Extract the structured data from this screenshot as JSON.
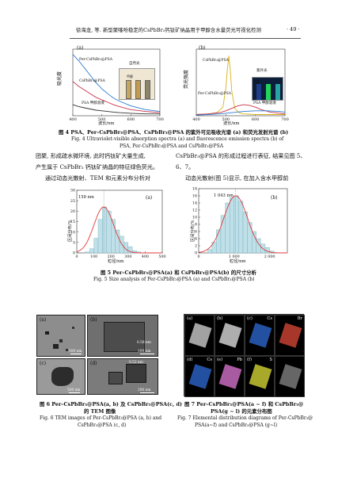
{
  "header": {
    "running_head": "徐海龙, 等. 新型聚噻吩稳定的CsPbBr₃钙钛矿纳晶用于甲醇含水量荧光可视化检测",
    "page_number": "· 49 ·"
  },
  "figure4": {
    "panel_a_label": "(a)",
    "panel_b_label": "(b)",
    "panel_a_ylabel": "吸光度",
    "panel_b_ylabel": "荧光强度",
    "xlabel": "波长/nm",
    "panel_a_series": [
      "Per-CsPbBr₃@PSA",
      "CsPbBr₃@PSA",
      "PSA 甲醇溶液"
    ],
    "panel_b_series": [
      "CsPbBr₃@PSA",
      "Per-CsPbBr₃@PSA",
      "PSA 甲醇溶液"
    ],
    "inset_a": [
      "自然光",
      "甲醇"
    ],
    "inset_b": [
      "紫外光",
      "甲醇"
    ],
    "caption_cn": "图 4  PSA、Per–CsPbBr₃@PSA、CsPbBr₃@PSA 的紫外可见吸收光谱 (a) 和荧光发射光谱 (b)",
    "caption_en_1": "Fig. 4  Ultraviolet-visible absorption spectra (a) and fluorescence emission spectra (b) of",
    "caption_en_2": "PSA, Per-CsPbBr₃@PSA and CsPbBr₃@PSA"
  },
  "body": {
    "left_line1": "团聚, 形成疏水微环境, 此时钙钛矿大量生成,",
    "left_line2": "产生属于 CsPbBr₃ 钙钛矿纳晶的特征绿色荧光。",
    "left_line3": "通过动态光散射、TEM 和元素分布分析对",
    "right_line1": "CsPbBr₃@PSA 的形成过程进行表征, 结果见图 5、",
    "right_line2": "6、7。",
    "right_line3": "动态光散射(图 5)显示, 在加入含水甲醇前"
  },
  "figure5": {
    "panel_a_label": "(a)",
    "panel_b_label": "(b)",
    "ylabel": "区间分布/%",
    "xlabel": "粒径/nm",
    "panel_a_annotation": "158 nm",
    "panel_b_annotation": "1 043 nm",
    "caption_cn": "图 5  Per–CsPbBr₃@PSA(a) 和 CsPbBr₃@PSA(b) 的尺寸分析",
    "caption_en": "Fig. 5  Size analysis of Per-CsPbBr₃@PSA (a) and CsPbBr₃@PSA (b)"
  },
  "chart_data": [
    {
      "type": "line",
      "title": "",
      "xlabel": "波长/nm",
      "ylabel": "吸光度",
      "xlim": [
        400,
        700
      ],
      "x_ticks": [
        400,
        500,
        600,
        700
      ],
      "series": [
        {
          "name": "Per-CsPbBr₃@PSA",
          "color": "#2b7bd0",
          "x": [
            400,
            410,
            420,
            430,
            440,
            460,
            480,
            500,
            520,
            540,
            560,
            600,
            650,
            700
          ],
          "y": [
            1.0,
            0.95,
            0.9,
            0.84,
            0.78,
            0.66,
            0.54,
            0.44,
            0.36,
            0.29,
            0.24,
            0.16,
            0.1,
            0.07
          ]
        },
        {
          "name": "CsPbBr₃@PSA",
          "color": "#c8344a",
          "x": [
            400,
            420,
            440,
            460,
            480,
            500,
            520,
            540,
            560,
            600,
            650,
            700
          ],
          "y": [
            0.56,
            0.48,
            0.42,
            0.36,
            0.3,
            0.26,
            0.22,
            0.18,
            0.15,
            0.1,
            0.07,
            0.05
          ]
        },
        {
          "name": "PSA 甲醇溶液",
          "color": "#333333",
          "x": [
            400,
            420,
            440,
            460,
            480,
            500,
            520,
            540,
            560,
            600,
            650,
            700
          ],
          "y": [
            0.18,
            0.15,
            0.13,
            0.11,
            0.09,
            0.08,
            0.07,
            0.06,
            0.05,
            0.04,
            0.03,
            0.03
          ]
        }
      ]
    },
    {
      "type": "line",
      "title": "",
      "xlabel": "波长/nm",
      "ylabel": "荧光强度",
      "xlim": [
        400,
        700
      ],
      "x_ticks": [
        400,
        500,
        600,
        700
      ],
      "series": [
        {
          "name": "CsPbBr₃@PSA",
          "color": "#d7b21a",
          "x": [
            400,
            440,
            470,
            490,
            500,
            505,
            510,
            515,
            520,
            530,
            545,
            560,
            600,
            650,
            700
          ],
          "y": [
            0.02,
            0.03,
            0.05,
            0.14,
            0.45,
            0.75,
            0.98,
            0.75,
            0.4,
            0.12,
            0.05,
            0.03,
            0.02,
            0.02,
            0.02
          ]
        },
        {
          "name": "Per-CsPbBr₃@PSA",
          "color": "#c8344a",
          "x": [
            400,
            440,
            480,
            500,
            520,
            540,
            560,
            580,
            600,
            620,
            650,
            700
          ],
          "y": [
            0.02,
            0.03,
            0.05,
            0.08,
            0.12,
            0.16,
            0.18,
            0.17,
            0.14,
            0.1,
            0.06,
            0.03
          ]
        },
        {
          "name": "PSA 甲醇溶液",
          "color": "#2b7bd0",
          "x": [
            400,
            440,
            480,
            520,
            560,
            600,
            640,
            680,
            700
          ],
          "y": [
            0.01,
            0.02,
            0.03,
            0.05,
            0.07,
            0.08,
            0.08,
            0.07,
            0.06
          ]
        }
      ]
    },
    {
      "type": "bar",
      "title": "",
      "xlabel": "粒径/nm",
      "ylabel": "区间分布/%",
      "xlim": [
        0,
        500
      ],
      "ylim": [
        0,
        30
      ],
      "x_ticks": [
        0,
        100,
        200,
        300,
        400,
        500
      ],
      "y_ticks": [
        0,
        5,
        10,
        15,
        20,
        25,
        30
      ],
      "bin_width": 25,
      "bin_centers": [
        62.5,
        87.5,
        112.5,
        137.5,
        162.5,
        187.5,
        212.5,
        237.5,
        262.5,
        287.5,
        312.5,
        337.5,
        362.5
      ],
      "values": [
        0.5,
        2,
        7,
        16,
        22,
        20,
        16,
        11,
        8,
        5,
        3,
        1,
        0.5
      ],
      "fit_peak": 158,
      "fit_color": "#e03a3a",
      "bar_color": "#bfe0e8"
    },
    {
      "type": "bar",
      "title": "",
      "xlabel": "粒径/nm",
      "ylabel": "区间分布/%",
      "xlim": [
        0,
        2500
      ],
      "ylim": [
        0,
        18
      ],
      "x_ticks": [
        0,
        1000,
        2000
      ],
      "x_tick_labels": [
        "0",
        "1 000",
        "2 000"
      ],
      "y_ticks": [
        0,
        2,
        4,
        6,
        8,
        10,
        12,
        14,
        16,
        18
      ],
      "bin_width": 125,
      "bin_centers": [
        312.5,
        437.5,
        562.5,
        687.5,
        812.5,
        937.5,
        1062.5,
        1187.5,
        1312.5,
        1437.5,
        1562.5,
        1687.5,
        1812.5,
        1937.5,
        2062.5
      ],
      "values": [
        1,
        3,
        6.5,
        10.5,
        14,
        15.5,
        16,
        14.5,
        11.5,
        8.5,
        6,
        4,
        2.5,
        1.5,
        0.5
      ],
      "fit_peak": 1043,
      "fit_color": "#e03a3a",
      "bar_color": "#bfe0e8"
    }
  ],
  "figure6": {
    "panels": [
      {
        "label": "(a)",
        "scale": "500 nm"
      },
      {
        "label": "(b)",
        "scale": "100 nm"
      },
      {
        "label": "(c)",
        "scale": "500 nm"
      },
      {
        "label": "(d)",
        "scale": "200 nm"
      }
    ],
    "annotation_b": "0.58 nm",
    "annotation_d": "0.52 nm",
    "caption_cn_1": "图 6  Per–CsPbBr₃@PSA(a, b) 及 CsPbBr₃@PSA(c, d)",
    "caption_cn_2": "的 TEM 图像",
    "caption_en_1": "Fig. 6  TEM images of Per-CsPbBr₃@PSA (a, b) and",
    "caption_en_2": "CsPbBr₃@PSA (c, d)"
  },
  "figure7": {
    "panels": [
      {
        "label": "(a)",
        "element": "",
        "color": "#d8d8d8"
      },
      {
        "label": "(b)",
        "element": "",
        "color": "#e8e8e8"
      },
      {
        "label": "(c)",
        "element": "Cs",
        "color": "#2f6bd6"
      },
      {
        "label": "",
        "element": "Br",
        "color": "#e04a3a"
      },
      {
        "label": "(d)",
        "element": "Cs",
        "color": "#2f6bd6"
      },
      {
        "label": "(e)",
        "element": "Pb",
        "color": "#e07ad6"
      },
      {
        "label": "(f)",
        "element": "S",
        "color": "#e0e03a"
      },
      {
        "label": "",
        "element": "",
        "color": "#888888"
      }
    ],
    "caption_cn_1": "图 7  Per–CsPbBr₃@PSA(a ~ f) 和 CsPbBr₃@",
    "caption_cn_2": "PSA(g ~ l) 的元素分布图",
    "caption_en_1": "Fig. 7  Elemental distribution diagrams of Per-CsPbBr₃@",
    "caption_en_2": "PSA(a~f) and CsPbBr₃@PSA (g~l)"
  }
}
